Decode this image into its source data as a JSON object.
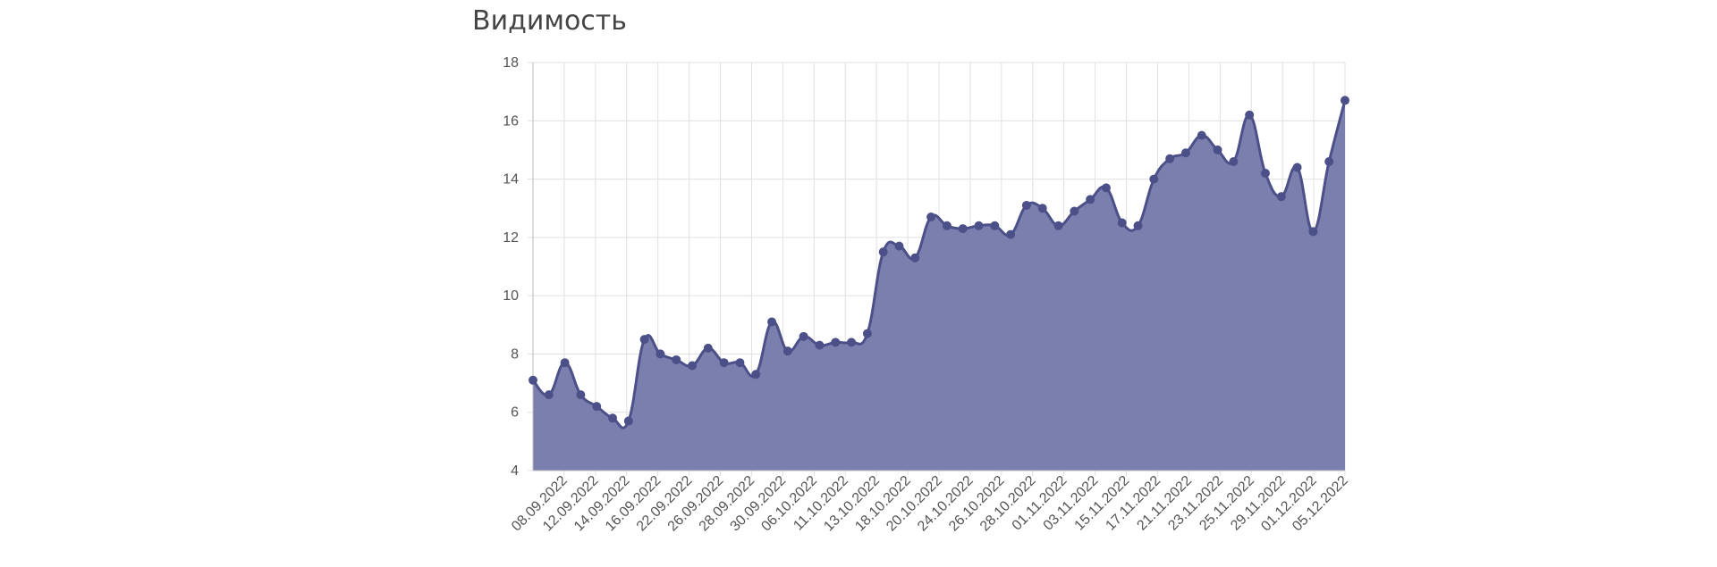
{
  "page": {
    "title": "Видимость"
  },
  "chart_data": {
    "type": "area",
    "title": "Видимость",
    "xlabel": "",
    "ylabel": "",
    "ylim": [
      4,
      18
    ],
    "yticks": [
      4,
      6,
      8,
      10,
      12,
      14,
      16,
      18
    ],
    "grid": true,
    "legend": "none",
    "colors": {
      "fill": "#7a7fae",
      "line": "#4c5088",
      "grid": "#e0e0e0",
      "axis": "#bbbbbb"
    },
    "x_tick_labels": [
      "08.09.2022",
      "12.09.2022",
      "14.09.2022",
      "16.09.2022",
      "22.09.2022",
      "26.09.2022",
      "28.09.2022",
      "30.09.2022",
      "06.10.2022",
      "11.10.2022",
      "13.10.2022",
      "18.10.2022",
      "20.10.2022",
      "24.10.2022",
      "26.10.2022",
      "28.10.2022",
      "01.11.2022",
      "03.11.2022",
      "15.11.2022",
      "17.11.2022",
      "21.11.2022",
      "23.11.2022",
      "25.11.2022",
      "29.11.2022",
      "01.12.2022",
      "05.12.2022"
    ],
    "series": [
      {
        "values": [
          7.1,
          6.6,
          7.7,
          6.6,
          6.2,
          5.8,
          5.7,
          8.5,
          8.0,
          7.8,
          7.6,
          8.2,
          7.7,
          7.7,
          7.3,
          9.1,
          8.1,
          8.6,
          8.3,
          8.4,
          8.4,
          8.7,
          11.5,
          11.7,
          11.3,
          12.7,
          12.4,
          12.3,
          12.4,
          12.4,
          12.1,
          13.1,
          13.0,
          12.4,
          12.9,
          13.3,
          13.7,
          12.5,
          12.4,
          14.0,
          14.7,
          14.9,
          15.5,
          15.0,
          14.6,
          16.2,
          14.2,
          13.4,
          14.4,
          12.2,
          14.6,
          16.7
        ]
      }
    ]
  }
}
